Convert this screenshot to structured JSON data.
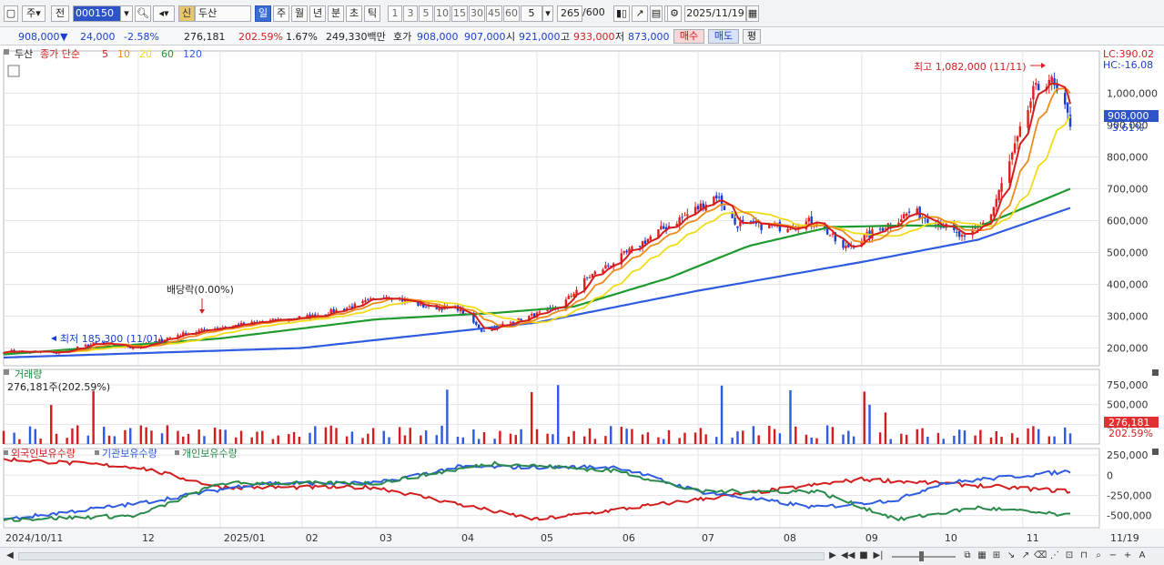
{
  "toolbar": {
    "period_prefix": "주",
    "prev_label": "전",
    "symbol_code": "000150",
    "credit_badge": "신",
    "stock_name": "두산",
    "periods": [
      "일",
      "주",
      "월",
      "년",
      "분",
      "초",
      "틱"
    ],
    "active_period": "일",
    "intervals": [
      "1",
      "3",
      "5",
      "10",
      "15",
      "30",
      "45",
      "60"
    ],
    "interval_value": "5",
    "bar_count": "265",
    "bar_total": "/600",
    "date": "2025/11/19"
  },
  "quote": {
    "price": "908,000",
    "direction": "▼",
    "change": "24,000",
    "change_pct": "-2.58%",
    "volume": "276,181",
    "volume_ratio": "202.59%",
    "turnover_rate": "1.67%",
    "trade_value": "249,330백만",
    "ask_label": "호가",
    "ask": "908,000",
    "bid": "907,000",
    "open_label": "시",
    "open": "921,000",
    "high_label": "고",
    "high": "933,000",
    "low_label": "저",
    "low": "873,000",
    "buy_label": "매수",
    "sell_label": "매도",
    "eval_label": "평"
  },
  "price_panel": {
    "legend_name": "두산",
    "legend_series": "종가 단순",
    "ma_labels": [
      "5",
      "10",
      "20",
      "60",
      "120"
    ],
    "ma_colors": [
      "#d21e1e",
      "#ef8a1c",
      "#f2dc1a",
      "#1f9a2e",
      "#2f5be0"
    ],
    "lc_label": "LC:390.02",
    "hc_label": "HC:-16.08",
    "high_annotation": "최고 1,082,000 (11/11)",
    "low_annotation": "최저 185,300 (11/01)",
    "dividend_annotation": "배당락(0.00%)",
    "current_price": "908,000",
    "current_pct": "-3.61%",
    "y_ticks": [
      "1,000,000",
      "900,000",
      "800,000",
      "700,000",
      "600,000",
      "500,000",
      "400,000",
      "300,000",
      "200,000"
    ]
  },
  "volume_panel": {
    "title": "거래량",
    "value_text": "276,181주(202.59%)",
    "y_ticks": [
      "750,000",
      "500,000",
      "250,000"
    ],
    "current_volume": "276,181",
    "current_ratio": "202.59%"
  },
  "holdings_panel": {
    "legends": [
      "외국인보유수량",
      "기관보유수량",
      "개인보유수량"
    ],
    "colors": [
      "#d21e1e",
      "#2f5be0",
      "#2a8a4a"
    ],
    "y_ticks": [
      "250,000",
      "0",
      "-250,000",
      "-500,000"
    ]
  },
  "x_axis": {
    "labels": [
      "2024/10/11",
      "12",
      "2025/01",
      "02",
      "03",
      "04",
      "05",
      "06",
      "07",
      "08",
      "09",
      "10",
      "11"
    ],
    "right_label": "11/19"
  },
  "chart_data": {
    "type": "candlestick",
    "y_range": [
      150000,
      1110000
    ],
    "months": [
      "2024/10/11",
      "12",
      "2025/01",
      "02",
      "03",
      "04",
      "05",
      "06",
      "07",
      "08",
      "09",
      "10",
      "11"
    ],
    "close_series": {
      "anchors": [
        [
          "2024/10/11",
          190000
        ],
        [
          "2024/11/01",
          185300
        ],
        [
          "2024/11/15",
          215000
        ],
        [
          "2024/12/01",
          200000
        ],
        [
          "2024/12/15",
          240000
        ],
        [
          "2025/01/01",
          265000
        ],
        [
          "2025/01/20",
          285000
        ],
        [
          "2025/02/05",
          300000
        ],
        [
          "2025/02/20",
          330000
        ],
        [
          "2025/03/05",
          365000
        ],
        [
          "2025/03/20",
          330000
        ],
        [
          "2025/04/01",
          325000
        ],
        [
          "2025/04/10",
          255000
        ],
        [
          "2025/04/25",
          290000
        ],
        [
          "2025/05/10",
          330000
        ],
        [
          "2025/05/20",
          420000
        ],
        [
          "2025/06/01",
          480000
        ],
        [
          "2025/06/15",
          560000
        ],
        [
          "2025/07/01",
          640000
        ],
        [
          "2025/07/08",
          680000
        ],
        [
          "2025/07/15",
          590000
        ],
        [
          "2025/08/01",
          580000
        ],
        [
          "2025/08/15",
          600000
        ],
        [
          "2025/08/25",
          510000
        ],
        [
          "2025/09/05",
          560000
        ],
        [
          "2025/09/20",
          630000
        ],
        [
          "2025/10/01",
          590000
        ],
        [
          "2025/10/10",
          540000
        ],
        [
          "2025/10/20",
          620000
        ],
        [
          "2025/10/30",
          850000
        ],
        [
          "2025/11/05",
          1000000
        ],
        [
          "2025/11/11",
          1050000
        ],
        [
          "2025/11/19",
          908000
        ]
      ]
    },
    "ma120_anchors": [
      [
        "2024/10/11",
        170000
      ],
      [
        "2025/02/01",
        200000
      ],
      [
        "2025/05/01",
        280000
      ],
      [
        "2025/07/01",
        380000
      ],
      [
        "2025/09/01",
        470000
      ],
      [
        "2025/10/15",
        540000
      ],
      [
        "2025/11/19",
        640000
      ]
    ],
    "ma60_anchors": [
      [
        "2024/10/11",
        180000
      ],
      [
        "2025/01/01",
        230000
      ],
      [
        "2025/03/01",
        290000
      ],
      [
        "2025/04/15",
        310000
      ],
      [
        "2025/05/15",
        330000
      ],
      [
        "2025/06/20",
        420000
      ],
      [
        "2025/07/20",
        520000
      ],
      [
        "2025/08/20",
        580000
      ],
      [
        "2025/09/20",
        585000
      ],
      [
        "2025/10/15",
        580000
      ],
      [
        "2025/11/19",
        700000
      ]
    ],
    "volume_max": 900000
  },
  "statusbar": {
    "scroll_left": "◀",
    "scroll_right": "▶",
    "tools": [
      "▶",
      "|◀◀",
      "■",
      "▶|"
    ]
  }
}
